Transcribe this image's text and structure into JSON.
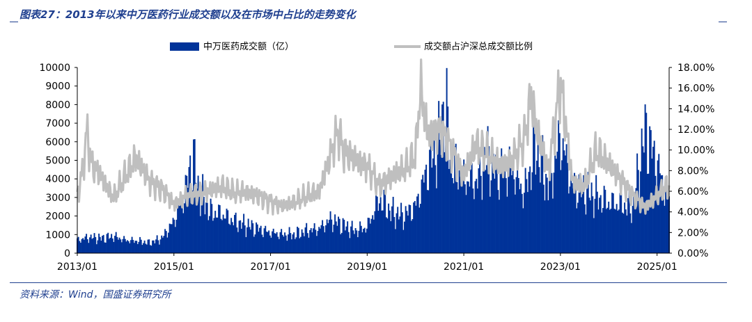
{
  "figure": {
    "title": "图表27：2013年以来中万医药行业成交额以及在市场中占比的走势变化",
    "source": "资料来源：Wind，国盛证券研究所"
  },
  "chart_data": {
    "type": "bar",
    "legend": {
      "placement": "top-center",
      "series_1": "中万医药成交额（亿）",
      "series_2": "成交额占沪深总成交额比例"
    },
    "xlabel": "",
    "ylabel": "",
    "y_left": {
      "range": [
        0,
        10000
      ],
      "ticks": [
        "0",
        "1000",
        "2000",
        "3000",
        "4000",
        "5000",
        "6000",
        "7000",
        "8000",
        "9000",
        "10000"
      ]
    },
    "y_right": {
      "range": [
        0,
        0.18
      ],
      "ticks": [
        "0.00%",
        "2.00%",
        "4.00%",
        "6.00%",
        "8.00%",
        "10.00%",
        "12.00%",
        "14.00%",
        "16.00%",
        "18.00%"
      ]
    },
    "x_ticks": [
      "2013/01",
      "2015/01",
      "2017/01",
      "2019/01",
      "2021/01",
      "2023/01",
      "2025/01"
    ],
    "x_range": [
      2013.0,
      2025.25
    ],
    "grid": false,
    "colors": {
      "bars": "#003399",
      "line": "#bfbfbf",
      "axis": "#000000"
    },
    "series_bar_points": [
      [
        2013.0,
        700
      ],
      [
        2013.25,
        850
      ],
      [
        2013.5,
        800
      ],
      [
        2013.75,
        900
      ],
      [
        2014.0,
        700
      ],
      [
        2014.25,
        650
      ],
      [
        2014.5,
        550
      ],
      [
        2014.75,
        800
      ],
      [
        2015.0,
        1700
      ],
      [
        2015.25,
        3500
      ],
      [
        2015.4,
        5200
      ],
      [
        2015.5,
        3500
      ],
      [
        2015.75,
        2200
      ],
      [
        2016.0,
        2100
      ],
      [
        2016.25,
        1700
      ],
      [
        2016.5,
        1500
      ],
      [
        2016.75,
        1300
      ],
      [
        2017.0,
        1100
      ],
      [
        2017.25,
        1000
      ],
      [
        2017.5,
        1000
      ],
      [
        2017.75,
        1200
      ],
      [
        2018.0,
        1300
      ],
      [
        2018.25,
        1800
      ],
      [
        2018.5,
        1500
      ],
      [
        2018.75,
        1200
      ],
      [
        2019.0,
        1400
      ],
      [
        2019.25,
        2900
      ],
      [
        2019.5,
        2200
      ],
      [
        2019.75,
        2000
      ],
      [
        2020.0,
        2500
      ],
      [
        2020.25,
        4500
      ],
      [
        2020.5,
        6000
      ],
      [
        2020.6,
        8200
      ],
      [
        2020.75,
        4800
      ],
      [
        2021.0,
        4000
      ],
      [
        2021.25,
        3800
      ],
      [
        2021.5,
        5200
      ],
      [
        2021.75,
        4400
      ],
      [
        2022.0,
        4500
      ],
      [
        2022.25,
        3200
      ],
      [
        2022.5,
        5800
      ],
      [
        2022.75,
        3500
      ],
      [
        2023.0,
        6200
      ],
      [
        2023.25,
        3600
      ],
      [
        2023.5,
        3400
      ],
      [
        2023.75,
        3000
      ],
      [
        2024.0,
        2700
      ],
      [
        2024.25,
        2600
      ],
      [
        2024.5,
        2400
      ],
      [
        2024.75,
        6500
      ],
      [
        2025.0,
        4800
      ],
      [
        2025.2,
        3000
      ]
    ],
    "series_line_points": [
      [
        2013.0,
        0.055
      ],
      [
        2013.1,
        0.078
      ],
      [
        2013.2,
        0.118
      ],
      [
        2013.3,
        0.085
      ],
      [
        2013.5,
        0.075
      ],
      [
        2013.75,
        0.053
      ],
      [
        2014.0,
        0.075
      ],
      [
        2014.2,
        0.092
      ],
      [
        2014.5,
        0.07
      ],
      [
        2014.75,
        0.062
      ],
      [
        2015.0,
        0.048
      ],
      [
        2015.25,
        0.055
      ],
      [
        2015.5,
        0.058
      ],
      [
        2015.75,
        0.06
      ],
      [
        2016.0,
        0.065
      ],
      [
        2016.25,
        0.058
      ],
      [
        2016.5,
        0.06
      ],
      [
        2016.75,
        0.055
      ],
      [
        2017.0,
        0.05
      ],
      [
        2017.25,
        0.045
      ],
      [
        2017.5,
        0.05
      ],
      [
        2017.75,
        0.055
      ],
      [
        2018.0,
        0.06
      ],
      [
        2018.25,
        0.095
      ],
      [
        2018.4,
        0.12
      ],
      [
        2018.5,
        0.1
      ],
      [
        2018.75,
        0.09
      ],
      [
        2019.0,
        0.085
      ],
      [
        2019.25,
        0.065
      ],
      [
        2019.5,
        0.075
      ],
      [
        2019.75,
        0.08
      ],
      [
        2020.0,
        0.095
      ],
      [
        2020.1,
        0.16
      ],
      [
        2020.25,
        0.115
      ],
      [
        2020.5,
        0.12
      ],
      [
        2020.75,
        0.1
      ],
      [
        2021.0,
        0.075
      ],
      [
        2021.25,
        0.105
      ],
      [
        2021.5,
        0.095
      ],
      [
        2021.75,
        0.085
      ],
      [
        2022.0,
        0.09
      ],
      [
        2022.25,
        0.11
      ],
      [
        2022.4,
        0.155
      ],
      [
        2022.5,
        0.12
      ],
      [
        2022.75,
        0.08
      ],
      [
        2023.0,
        0.165
      ],
      [
        2023.25,
        0.07
      ],
      [
        2023.5,
        0.065
      ],
      [
        2023.75,
        0.1
      ],
      [
        2024.0,
        0.085
      ],
      [
        2024.25,
        0.072
      ],
      [
        2024.5,
        0.055
      ],
      [
        2024.75,
        0.045
      ],
      [
        2025.0,
        0.055
      ],
      [
        2025.2,
        0.065
      ]
    ]
  }
}
